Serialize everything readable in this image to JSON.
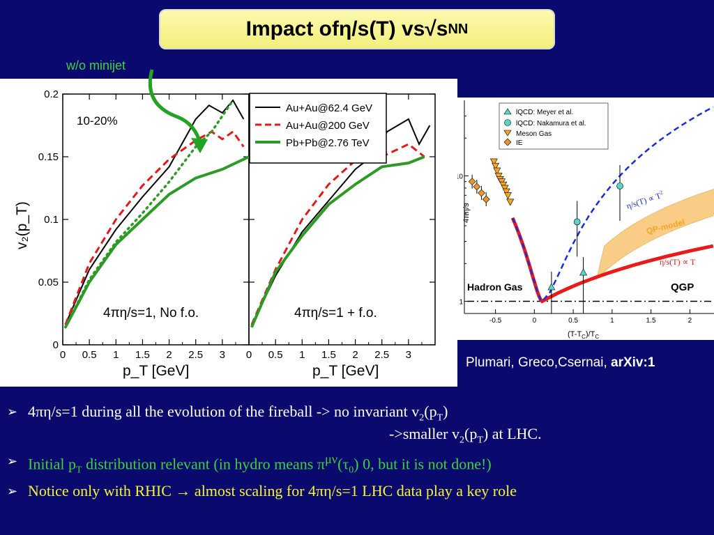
{
  "title": {
    "prefix": "Impact of ",
    "eta": "η",
    "middle": "/s(T) vs ",
    "sqrt": "√s",
    "sub": "NN"
  },
  "minijet_label": "w/o minijet",
  "left_chart": {
    "centrality": "10-20%",
    "ylabel": "v₂(p_T)",
    "xlabel": "p_T [GeV]",
    "yticks": [
      "0",
      "0.05",
      "0.1",
      "0.15",
      "0.2"
    ],
    "xticks": [
      "0",
      "0.5",
      "1",
      "1.5",
      "2",
      "2.5",
      "3"
    ],
    "legend": [
      "Au+Au@62.4 GeV",
      "Au+Au@200 GeV",
      "Pb+Pb@2.76 TeV"
    ],
    "colors": {
      "au62": "#000000",
      "au200": "#e01a1a",
      "pbpb": "#2e9a26"
    },
    "panel1_label": "4πη/s=1, No f.o.",
    "panel2_label": "4πη/s=1 + f.o."
  },
  "chart_data": [
    {
      "type": "line",
      "title": "",
      "xlabel": "p_T [GeV]",
      "ylabel": "v₂(p_T)",
      "xlim": [
        0,
        3.5
      ],
      "ylim": [
        0,
        0.2
      ],
      "annotation": "4πη/s=1, No f.o.",
      "series": [
        {
          "name": "Au+Au@62.4 GeV",
          "x": [
            0.05,
            0.5,
            1,
            1.5,
            2,
            2.5,
            2.75,
            3,
            3.2,
            3.4
          ],
          "y": [
            0.016,
            0.06,
            0.092,
            0.118,
            0.142,
            0.18,
            0.191,
            0.185,
            0.195,
            0.18
          ]
        },
        {
          "name": "Au+Au@200 GeV",
          "x": [
            0.05,
            0.5,
            1,
            1.5,
            2,
            2.5,
            2.8,
            3,
            3.2,
            3.4
          ],
          "y": [
            0.016,
            0.065,
            0.1,
            0.127,
            0.148,
            0.163,
            0.17,
            0.164,
            0.17,
            0.158
          ]
        },
        {
          "name": "Pb+Pb@2.76 TeV",
          "x": [
            0.05,
            0.5,
            1,
            1.5,
            2,
            2.5,
            3,
            3.5
          ],
          "y": [
            0.014,
            0.05,
            0.08,
            0.1,
            0.12,
            0.133,
            0.14,
            0.15
          ]
        },
        {
          "name": "Pb+Pb@2.76 TeV w/o minijet",
          "x": [
            0.05,
            0.5,
            1,
            1.5,
            2,
            2.5,
            2.8,
            3.2
          ],
          "y": [
            0.014,
            0.052,
            0.082,
            0.105,
            0.13,
            0.158,
            0.17,
            0.195
          ]
        }
      ]
    },
    {
      "type": "line",
      "title": "",
      "xlabel": "p_T [GeV]",
      "ylabel": "v₂(p_T)",
      "xlim": [
        0,
        3.5
      ],
      "ylim": [
        0,
        0.2
      ],
      "annotation": "4πη/s=1 + f.o.",
      "series": [
        {
          "name": "Au+Au@62.4 GeV",
          "x": [
            0.05,
            0.5,
            1,
            1.5,
            2,
            2.3,
            2.6,
            3,
            3.2,
            3.4
          ],
          "y": [
            0.015,
            0.055,
            0.09,
            0.115,
            0.14,
            0.15,
            0.17,
            0.18,
            0.16,
            0.175
          ]
        },
        {
          "name": "Au+Au@200 GeV",
          "x": [
            0.05,
            0.5,
            1,
            1.5,
            2,
            2.5,
            3,
            3.3
          ],
          "y": [
            0.016,
            0.06,
            0.1,
            0.128,
            0.147,
            0.15,
            0.16,
            0.15
          ]
        },
        {
          "name": "Pb+Pb@2.76 TeV",
          "x": [
            0.05,
            0.5,
            1,
            1.5,
            2,
            2.5,
            3,
            3.3
          ],
          "y": [
            0.014,
            0.058,
            0.087,
            0.112,
            0.128,
            0.142,
            0.145,
            0.15
          ]
        }
      ]
    },
    {
      "type": "scatter",
      "xlabel": "(T-T_C)/T_C",
      "ylabel": "4πη/s",
      "xlim": [
        -0.9,
        2.4
      ],
      "ylim": [
        0.8,
        40
      ],
      "log_y": true,
      "xticks": [
        "-0.5",
        "0",
        "0.5",
        "1",
        "1.5",
        "2"
      ],
      "yticks": [
        "1",
        "10"
      ],
      "legend": [
        "lQCD: Meyer et al.",
        "lQCD: Nakamura et al.",
        "Meson Gas",
        "IE"
      ],
      "region_labels": [
        "Hadron Gas",
        "QGP"
      ],
      "curve_labels": [
        "η/s(T) ∝ T²",
        "QP-model",
        "η/s(T) ∝ T"
      ],
      "series": [
        {
          "name": "lQCD: Meyer et al.",
          "x": [
            0.22,
            0.63
          ],
          "y": [
            1.3,
            1.7
          ]
        },
        {
          "name": "lQCD: Nakamura et al.",
          "x": [
            0.55,
            1.1
          ],
          "y": [
            4.3,
            8.3
          ]
        },
        {
          "name": "Meson Gas",
          "x": [
            -0.52,
            -0.5,
            -0.48,
            -0.46,
            -0.44,
            -0.42,
            -0.4,
            -0.38,
            -0.36,
            -0.34,
            -0.31
          ],
          "y": [
            13,
            12,
            11,
            10,
            9.4,
            9,
            8.5,
            8,
            7.5,
            7,
            6.2
          ]
        },
        {
          "name": "IE",
          "x": [
            -0.8,
            -0.74,
            -0.68,
            -0.62
          ],
          "y": [
            9,
            8.2,
            7.3,
            6.5
          ]
        }
      ]
    }
  ],
  "right_chart": {
    "ylabel": "4πη/s",
    "xlabel": "(T-T",
    "xlabel_sub": "C",
    "xlabel_mid": ")/T",
    "xlabel_sub2": "C",
    "xticks": [
      "-0.5",
      "0",
      "0.5",
      "1",
      "1.5",
      "2"
    ],
    "yticks": [
      "1",
      "10"
    ],
    "legend": [
      "lQCD: Meyer et al.",
      "lQCD: Nakamura et al.",
      "Meson Gas",
      "IE"
    ],
    "hadron": "Hadron Gas",
    "qgp": "QGP",
    "t2": "η/s(T) ∝ T",
    "t2sup": "2",
    "t1": "η/s(T) ∝ T",
    "qp": "QP-model",
    "colors": {
      "blue": "#1a2ed8",
      "red": "#e81a1a",
      "orange": "#f5a623"
    }
  },
  "reference": {
    "authors": "Plumari, Greco,Csernai, ",
    "arxiv": "arXiv:1"
  },
  "bullets": {
    "b1": "4πη/s=1 during all the evolution of the fireball -> no invariant v",
    "b1_sub": "2",
    "b1_tail": "(p",
    "b1_tail_sub": "T",
    "b1_end": ")",
    "b1c": "->smaller v",
    "b1c_sub": "2",
    "b1c_mid": "(p",
    "b1c_sub2": "T",
    "b1c_end": ") at LHC.",
    "b2": "Initial p",
    "b2_sub": "T",
    "b2_mid": " distribution relevant (in hydro means π",
    "b2_sup": "μν",
    "b2_mid2": "(τ",
    "b2_sub2": "0",
    "b2_end": ")    0, but it is not done!)",
    "b3": "Notice only with RHIC → almost scaling for 4πη/s=1 LHC data play a key role"
  }
}
